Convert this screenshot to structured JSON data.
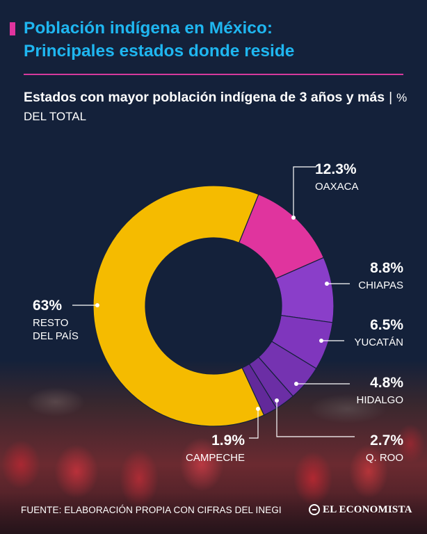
{
  "header": {
    "title_line1": "Población indígena en México:",
    "title_line2": "Principales estados donde reside",
    "subtitle_main": "Estados con mayor población indígena de 3 años y más",
    "subtitle_sep": "|",
    "subtitle_unit": "% DEL TOTAL"
  },
  "colors": {
    "background": "#14213a",
    "title": "#1fb6f0",
    "accent": "#d63a9d",
    "oaxaca": "#e0349e",
    "states_purple": "#8338c4",
    "resto": "#f5bb00"
  },
  "chart_data": {
    "type": "pie",
    "variant": "donut",
    "unit": "%",
    "slices": [
      {
        "label": "OAXACA",
        "value": 12.3,
        "value_text": "12.3%",
        "color": "#e0349e"
      },
      {
        "label": "CHIAPAS",
        "value": 8.8,
        "value_text": "8.8%",
        "color": "#8a3ec9"
      },
      {
        "label": "YUCATÁN",
        "value": 6.5,
        "value_text": "6.5%",
        "color": "#7f36bd"
      },
      {
        "label": "HIDALGO",
        "value": 4.8,
        "value_text": "4.8%",
        "color": "#7533b1"
      },
      {
        "label": "Q. ROO",
        "value": 2.7,
        "value_text": "2.7%",
        "color": "#6b2ea5"
      },
      {
        "label": "CAMPECHE",
        "value": 1.9,
        "value_text": "1.9%",
        "color": "#62299a"
      },
      {
        "label": "RESTO\nDEL PAÍS",
        "value": 63,
        "value_text": "63%",
        "color": "#f5bb00"
      }
    ]
  },
  "footer": {
    "source": "FUENTE: ELABORACIÓN PROPIA CON CIFRAS DEL INEGI",
    "logo_text": "EL ECONOMISTA",
    "logo_icon": "el-economista-logo-icon"
  }
}
